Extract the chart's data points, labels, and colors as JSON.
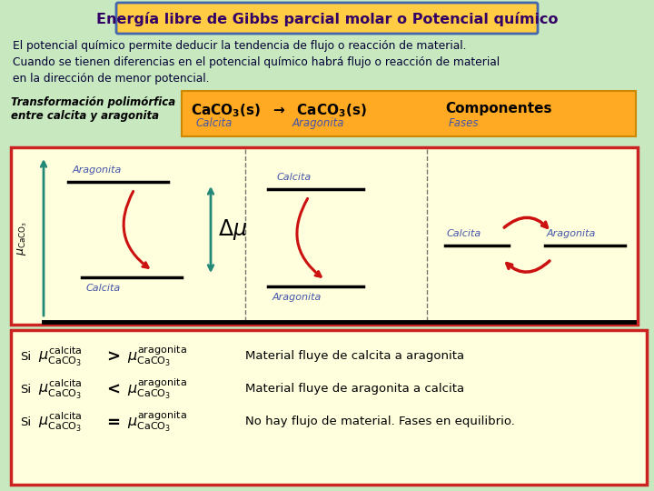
{
  "bg_color": "#c8e8c0",
  "title": "Energía libre de Gibbs parcial molar o Potencial químico",
  "title_box_facecolor": "#ffcc44",
  "title_border_color": "#4466aa",
  "body_text": "El potencial químico permite deducir la tendencia de flujo o reacción de material.\nCuando se tienen diferencias en el potencial químico habrá flujo o reacción de material\nen la dirección de menor potencial.",
  "transform_label": "Transformación polimórfica\nentre calcita y aragonita",
  "reaction_box_color": "#ffaa22",
  "reaction_border_color": "#cc8800",
  "diagram_box_color": "#ffffdd",
  "diagram_border_color": "#cc2222",
  "bottom_box_color": "#ffffdd",
  "bottom_border_color": "#cc2222",
  "label_color": "#4455aa",
  "arrow_color_red": "#cc1111",
  "arrow_color_green": "#228877"
}
